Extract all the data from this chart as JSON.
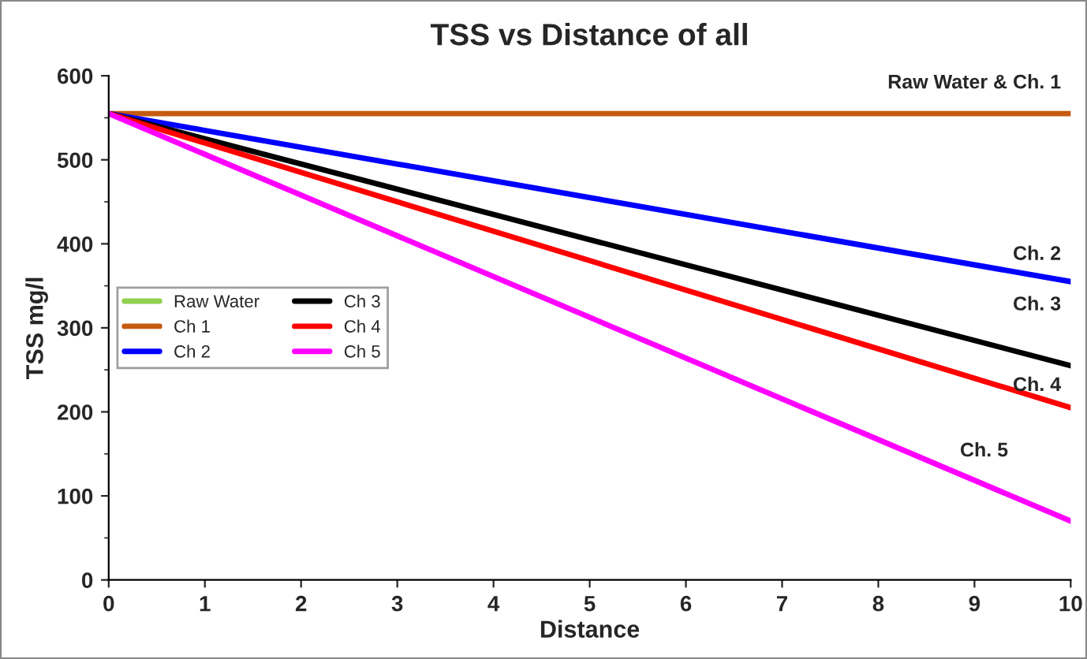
{
  "chart_data": {
    "type": "line",
    "title": "TSS vs Distance of all",
    "xlabel": "Distance",
    "ylabel": "TSS mg/l",
    "x": [
      0,
      10
    ],
    "series": [
      {
        "name": "Raw Water",
        "color": "#92d050",
        "values": [
          null,
          null
        ]
      },
      {
        "name": "Ch 1",
        "color": "#c55a11",
        "values": [
          555,
          555
        ]
      },
      {
        "name": "Ch 2",
        "color": "#0000ff",
        "values": [
          555,
          355
        ]
      },
      {
        "name": "Ch 3",
        "color": "#000000",
        "values": [
          555,
          255
        ]
      },
      {
        "name": "Ch 4",
        "color": "#ff0000",
        "values": [
          555,
          205
        ]
      },
      {
        "name": "Ch 5",
        "color": "#ff00ff",
        "values": [
          555,
          70
        ]
      }
    ],
    "xlim": [
      0,
      10
    ],
    "xticks": [
      0,
      1,
      2,
      3,
      4,
      5,
      6,
      7,
      8,
      9,
      10
    ],
    "ylim": [
      0,
      600
    ],
    "yticks": [
      0,
      100,
      200,
      300,
      400,
      500,
      600
    ],
    "annotations": [
      "Raw Water & Ch. 1",
      "Ch. 2",
      "Ch. 3",
      "Ch. 4",
      "Ch. 5"
    ],
    "legend": "left",
    "grid": false,
    "marker": "none",
    "line_style": "solid"
  }
}
